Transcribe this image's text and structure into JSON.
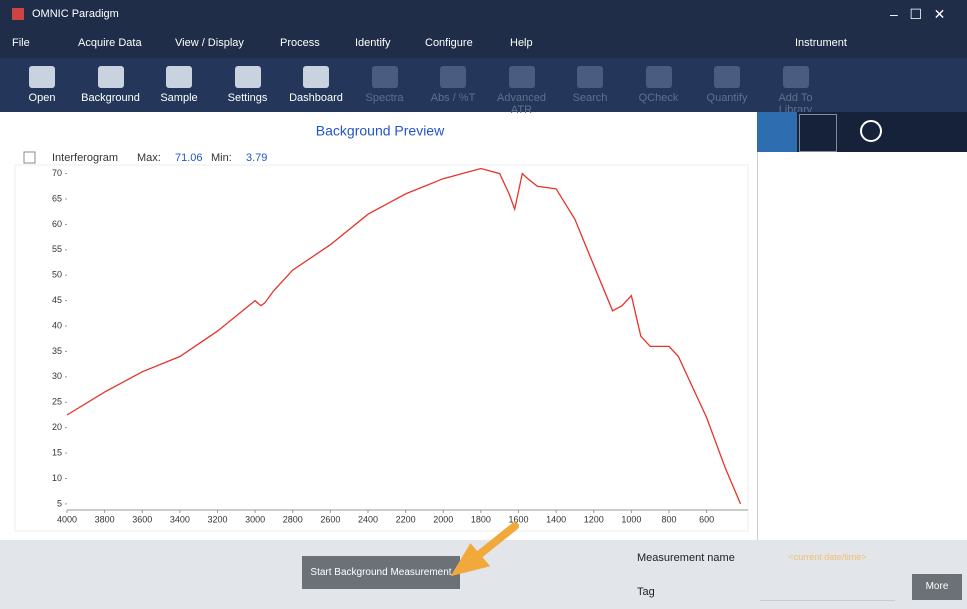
{
  "window": {
    "title": "OMNIC Paradigm"
  },
  "menu": [
    "File",
    "Acquire Data",
    "View / Display",
    "Process",
    "Identify",
    "Configure",
    "Help"
  ],
  "instrument": "Instrument",
  "toolbar": [
    {
      "label": "Open",
      "enabled": true
    },
    {
      "label": "Background",
      "enabled": true
    },
    {
      "label": "Sample",
      "enabled": true
    },
    {
      "label": "Settings",
      "enabled": true
    },
    {
      "label": "Dashboard",
      "enabled": true
    },
    {
      "label": "Spectra",
      "enabled": false
    },
    {
      "label": "Abs / %T",
      "enabled": false
    },
    {
      "label": "Advanced ATR",
      "enabled": false
    },
    {
      "label": "Search",
      "enabled": false
    },
    {
      "label": "QCheck",
      "enabled": false
    },
    {
      "label": "Quantify",
      "enabled": false
    },
    {
      "label": "Add To Library",
      "enabled": false
    }
  ],
  "chart_data": {
    "type": "line",
    "title": "Background Preview",
    "series": [
      {
        "name": "Interferogram",
        "color": "#e8322a",
        "x": [
          4000,
          3800,
          3600,
          3400,
          3200,
          3000,
          2970,
          2950,
          2900,
          2800,
          2600,
          2400,
          2200,
          2000,
          1800,
          1700,
          1650,
          1620,
          1580,
          1550,
          1500,
          1400,
          1300,
          1200,
          1100,
          1050,
          1000,
          950,
          900,
          800,
          750,
          700,
          600,
          500,
          420
        ],
        "values": [
          22.5,
          27,
          31,
          34,
          39,
          45,
          44,
          44.5,
          47,
          51,
          56,
          62,
          66,
          69,
          71,
          70,
          66,
          63,
          70,
          69,
          67.5,
          67,
          61,
          52,
          43,
          44,
          46,
          38,
          36,
          36,
          34,
          30,
          22,
          12,
          5
        ]
      }
    ],
    "max_label": "Max:",
    "max": 71.06,
    "min_label": "Min:",
    "min": 3.79,
    "xlim": [
      4000,
      380
    ],
    "ylim": [
      3.8,
      71.1
    ],
    "xticks": [
      4000,
      3800,
      3600,
      3400,
      3200,
      3000,
      2800,
      2600,
      2400,
      2200,
      2000,
      1800,
      1600,
      1400,
      1200,
      1000,
      800,
      600
    ],
    "yticks": [
      5,
      10,
      15,
      20,
      25,
      30,
      35,
      40,
      45,
      50,
      55,
      60,
      65,
      70
    ]
  },
  "footer": {
    "button": "Start Background Measurement",
    "name_label": "Measurement name",
    "name_placeholder": "<current date/time>",
    "tag_label": "Tag",
    "more": "More"
  }
}
